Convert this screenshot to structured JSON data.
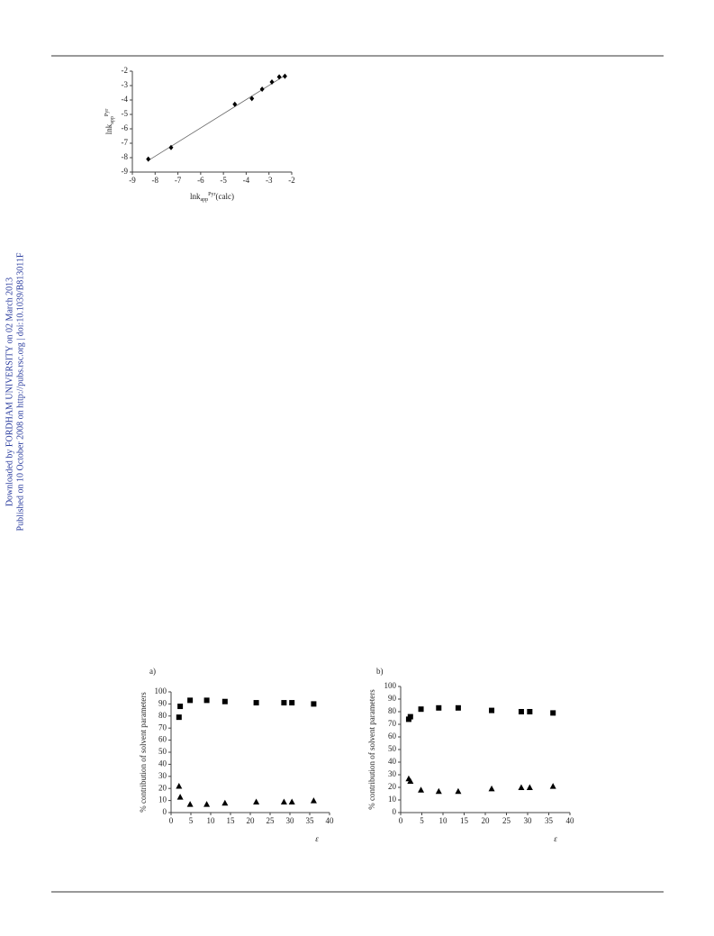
{
  "watermark": [
    "Downloaded by FORDHAM UNIVERSITY on 02 March 2013",
    "Published on 10 October 2008 on http://pubs.rsc.org | doi:10.1039/B813011F"
  ],
  "chart_data": [
    {
      "type": "scatter",
      "xlabel": {
        "main": "lnk",
        "sub": "app",
        "sup": "Pyr",
        "suffix": "(calc)"
      },
      "ylabel": {
        "main": "lnk",
        "sub": "app",
        "sup": "Pyr"
      },
      "x": [
        -8.3,
        -7.3,
        -4.5,
        -3.75,
        -3.3,
        -2.87,
        -2.55,
        -2.3
      ],
      "series": [
        {
          "color": "#000000",
          "marker": "diamond",
          "values": [
            -8.1,
            -7.3,
            -4.3,
            -3.9,
            -3.25,
            -2.75,
            -2.4,
            -2.35
          ]
        }
      ],
      "trendline": {
        "x": [
          -8.3,
          -2.3
        ],
        "y": [
          -8.2,
          -2.3
        ]
      },
      "xlim": [
        -9,
        -2
      ],
      "xticks": [
        -9,
        -8,
        -7,
        -6,
        -5,
        -4,
        -3,
        -2
      ],
      "ylim": [
        -9,
        -2
      ],
      "yticks": [
        -9,
        -8,
        -7,
        -6,
        -5,
        -4,
        -3,
        -2
      ]
    },
    {
      "type": "scatter",
      "panel": "a)",
      "xlabel": "ε",
      "ylabel": "% contribution of solvent parameters",
      "x": [
        2,
        2.3,
        4.8,
        9,
        13.6,
        21.5,
        28.5,
        30.5,
        36
      ],
      "series": [
        {
          "color": "#000000",
          "marker": "square",
          "values": [
            79,
            88,
            93,
            93,
            92,
            91,
            91,
            91,
            90
          ]
        },
        {
          "color": "#000000",
          "marker": "triangle",
          "values": [
            22,
            13,
            7,
            7,
            8,
            9,
            9,
            9,
            10
          ]
        }
      ],
      "xlim": [
        0,
        40
      ],
      "xticks": [
        0,
        5,
        10,
        15,
        20,
        25,
        30,
        35,
        40
      ],
      "ylim": [
        0,
        100
      ],
      "yticks": [
        0,
        10,
        20,
        30,
        40,
        50,
        60,
        70,
        80,
        90,
        100
      ]
    },
    {
      "type": "scatter",
      "panel": "b)",
      "xlabel": "ε",
      "ylabel": "% contribution of solvent parameters",
      "x": [
        1.9,
        2.3,
        4.8,
        9,
        13.6,
        21.5,
        28.5,
        30.5,
        36
      ],
      "series": [
        {
          "color": "#000000",
          "marker": "square",
          "values": [
            74,
            76,
            82,
            83,
            83,
            81,
            80,
            80,
            79
          ]
        },
        {
          "color": "#000000",
          "marker": "triangle",
          "values": [
            27,
            25,
            18,
            17,
            17,
            19,
            20,
            20,
            21
          ]
        }
      ],
      "xlim": [
        0,
        40
      ],
      "xticks": [
        0,
        5,
        10,
        15,
        20,
        25,
        30,
        35,
        40
      ],
      "ylim": [
        0,
        100
      ],
      "yticks": [
        0,
        10,
        20,
        30,
        40,
        50,
        60,
        70,
        80,
        90,
        100
      ]
    }
  ]
}
